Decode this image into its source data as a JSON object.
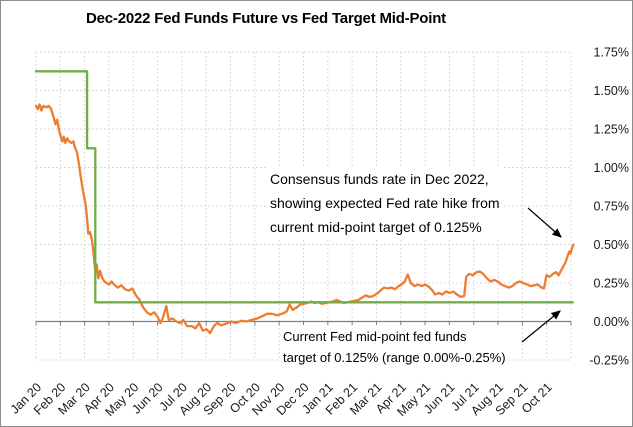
{
  "chart_data": {
    "type": "line",
    "title": "Dec-2022 Fed Funds Future vs Fed Target Mid-Point",
    "x_unit": "months since Jan 2020",
    "x_range": [
      0,
      22
    ],
    "x_tick_labels": [
      "Jan 20",
      "Feb 20",
      "Mar 20",
      "Apr 20",
      "May 20",
      "Jun 20",
      "Jul 20",
      "Aug 20",
      "Sep 20",
      "Oct 20",
      "Nov 20",
      "Dec 20",
      "Jan 21",
      "Feb 21",
      "Mar 21",
      "Apr 21",
      "May 21",
      "Jun 21",
      "Jul 21",
      "Aug 21",
      "Sep 21",
      "Oct 21"
    ],
    "ylim": [
      -0.25,
      1.75
    ],
    "y_tick_values": [
      1.75,
      1.5,
      1.25,
      1.0,
      0.75,
      0.5,
      0.25,
      0.0,
      -0.25
    ],
    "y_tick_labels": [
      "1.75%",
      "1.50%",
      "1.25%",
      "1.00%",
      "0.75%",
      "0.50%",
      "0.25%",
      "0.00%",
      "-0.25%"
    ],
    "grid": true,
    "legend": "none",
    "colors": {
      "future_line": "#ED7D31",
      "target_line": "#70AD47",
      "gridline": "#D9D9D9",
      "zero_axis": "#7F7F7F",
      "text": "#1a1a1a"
    },
    "series": [
      {
        "name": "Dec-2022 Fed Funds Future",
        "color": "#ED7D31",
        "points": [
          [
            0,
            1.4
          ],
          [
            0.08,
            1.38
          ],
          [
            0.15,
            1.41
          ],
          [
            0.22,
            1.37
          ],
          [
            0.3,
            1.4
          ],
          [
            0.42,
            1.39
          ],
          [
            0.52,
            1.4
          ],
          [
            0.62,
            1.38
          ],
          [
            0.72,
            1.33
          ],
          [
            0.8,
            1.28
          ],
          [
            0.87,
            1.31
          ],
          [
            0.95,
            1.24
          ],
          [
            1.02,
            1.2
          ],
          [
            1.08,
            1.17
          ],
          [
            1.14,
            1.2
          ],
          [
            1.2,
            1.16
          ],
          [
            1.28,
            1.19
          ],
          [
            1.36,
            1.17
          ],
          [
            1.46,
            1.16
          ],
          [
            1.54,
            1.17
          ],
          [
            1.6,
            1.13
          ],
          [
            1.68,
            1.1
          ],
          [
            1.76,
            1.03
          ],
          [
            1.84,
            0.94
          ],
          [
            1.92,
            0.86
          ],
          [
            1.99,
            0.8
          ],
          [
            2.05,
            0.75
          ],
          [
            2.11,
            0.65
          ],
          [
            2.15,
            0.57
          ],
          [
            2.22,
            0.58
          ],
          [
            2.3,
            0.53
          ],
          [
            2.36,
            0.45
          ],
          [
            2.41,
            0.37
          ],
          [
            2.45,
            0.32
          ],
          [
            2.5,
            0.37
          ],
          [
            2.56,
            0.28
          ],
          [
            2.63,
            0.33
          ],
          [
            2.71,
            0.29
          ],
          [
            2.81,
            0.26
          ],
          [
            2.91,
            0.25
          ],
          [
            3.01,
            0.24
          ],
          [
            3.11,
            0.26
          ],
          [
            3.21,
            0.24
          ],
          [
            3.36,
            0.22
          ],
          [
            3.51,
            0.235
          ],
          [
            3.66,
            0.21
          ],
          [
            3.81,
            0.2
          ],
          [
            3.96,
            0.215
          ],
          [
            4.11,
            0.17
          ],
          [
            4.26,
            0.14
          ],
          [
            4.41,
            0.09
          ],
          [
            4.56,
            0.06
          ],
          [
            4.71,
            0.045
          ],
          [
            4.86,
            0.06
          ],
          [
            5.01,
            0.03
          ],
          [
            5.11,
            -0.01
          ],
          [
            5.21,
            0.02
          ],
          [
            5.36,
            0.1
          ],
          [
            5.46,
            0.01
          ],
          [
            5.61,
            0.02
          ],
          [
            5.76,
            0
          ],
          [
            5.91,
            -0.01
          ],
          [
            6.06,
            0.01
          ],
          [
            6.21,
            -0.03
          ],
          [
            6.41,
            -0.03
          ],
          [
            6.56,
            -0.045
          ],
          [
            6.71,
            -0.01
          ],
          [
            6.86,
            -0.06
          ],
          [
            7.01,
            -0.05
          ],
          [
            7.16,
            -0.075
          ],
          [
            7.31,
            -0.03
          ],
          [
            7.46,
            -0.01
          ],
          [
            7.61,
            -0.025
          ],
          [
            7.81,
            -0.015
          ],
          [
            8.01,
            0
          ],
          [
            8.21,
            -0.01
          ],
          [
            8.46,
            0.005
          ],
          [
            8.66,
            0
          ],
          [
            8.86,
            0.01
          ],
          [
            9.11,
            0.02
          ],
          [
            9.31,
            0.035
          ],
          [
            9.51,
            0.05
          ],
          [
            9.71,
            0.05
          ],
          [
            9.91,
            0.04
          ],
          [
            10.11,
            0.05
          ],
          [
            10.31,
            0.065
          ],
          [
            10.43,
            0.11
          ],
          [
            10.56,
            0.075
          ],
          [
            10.71,
            0.09
          ],
          [
            10.86,
            0.11
          ],
          [
            11.01,
            0.115
          ],
          [
            11.16,
            0.12
          ],
          [
            11.31,
            0.13
          ],
          [
            11.46,
            0.12
          ],
          [
            11.61,
            0.125
          ],
          [
            11.76,
            0.115
          ],
          [
            11.91,
            0.12
          ],
          [
            12.06,
            0.125
          ],
          [
            12.21,
            0.13
          ],
          [
            12.36,
            0.14
          ],
          [
            12.51,
            0.13
          ],
          [
            12.66,
            0.12
          ],
          [
            12.81,
            0.125
          ],
          [
            12.96,
            0.13
          ],
          [
            13.11,
            0.135
          ],
          [
            13.26,
            0.14
          ],
          [
            13.41,
            0.155
          ],
          [
            13.56,
            0.17
          ],
          [
            13.71,
            0.16
          ],
          [
            13.86,
            0.165
          ],
          [
            14.01,
            0.18
          ],
          [
            14.16,
            0.2
          ],
          [
            14.31,
            0.22
          ],
          [
            14.46,
            0.215
          ],
          [
            14.61,
            0.22
          ],
          [
            14.76,
            0.21
          ],
          [
            14.91,
            0.23
          ],
          [
            15.03,
            0.24
          ],
          [
            15.16,
            0.26
          ],
          [
            15.29,
            0.305
          ],
          [
            15.41,
            0.25
          ],
          [
            15.56,
            0.23
          ],
          [
            15.71,
            0.24
          ],
          [
            15.86,
            0.23
          ],
          [
            16.01,
            0.24
          ],
          [
            16.16,
            0.225
          ],
          [
            16.31,
            0.2
          ],
          [
            16.41,
            0.175
          ],
          [
            16.56,
            0.185
          ],
          [
            16.71,
            0.175
          ],
          [
            16.86,
            0.195
          ],
          [
            17.01,
            0.185
          ],
          [
            17.16,
            0.195
          ],
          [
            17.31,
            0.175
          ],
          [
            17.46,
            0.16
          ],
          [
            17.61,
            0.165
          ],
          [
            17.69,
            0.29
          ],
          [
            17.81,
            0.31
          ],
          [
            17.96,
            0.3
          ],
          [
            18.11,
            0.32
          ],
          [
            18.24,
            0.325
          ],
          [
            18.39,
            0.31
          ],
          [
            18.54,
            0.28
          ],
          [
            18.69,
            0.26
          ],
          [
            18.84,
            0.27
          ],
          [
            18.99,
            0.26
          ],
          [
            19.14,
            0.24
          ],
          [
            19.29,
            0.23
          ],
          [
            19.44,
            0.22
          ],
          [
            19.59,
            0.23
          ],
          [
            19.74,
            0.25
          ],
          [
            19.89,
            0.26
          ],
          [
            20.04,
            0.25
          ],
          [
            20.19,
            0.24
          ],
          [
            20.34,
            0.23
          ],
          [
            20.49,
            0.235
          ],
          [
            20.64,
            0.24
          ],
          [
            20.79,
            0.22
          ],
          [
            20.89,
            0.215
          ],
          [
            20.99,
            0.3
          ],
          [
            21.12,
            0.29
          ],
          [
            21.27,
            0.31
          ],
          [
            21.39,
            0.32
          ],
          [
            21.49,
            0.3
          ],
          [
            21.59,
            0.33
          ],
          [
            21.69,
            0.36
          ],
          [
            21.79,
            0.39
          ],
          [
            21.87,
            0.43
          ],
          [
            21.93,
            0.455
          ],
          [
            21.98,
            0.44
          ],
          [
            22.04,
            0.475
          ],
          [
            22.1,
            0.5
          ]
        ]
      },
      {
        "name": "Fed Target Mid-Point",
        "color": "#70AD47",
        "points": [
          [
            0,
            1.625
          ],
          [
            2.1,
            1.625
          ],
          [
            2.1,
            1.125
          ],
          [
            2.44,
            1.125
          ],
          [
            2.44,
            0.125
          ],
          [
            22.08,
            0.125
          ]
        ]
      }
    ]
  },
  "annotations": {
    "consensus": {
      "lines": [
        "Consensus funds rate in Dec 2022,",
        "showing expected Fed rate hike from",
        "current mid-point target of 0.125%"
      ]
    },
    "current_target": {
      "lines": [
        "Current Fed mid-point fed funds",
        "target of 0.125% (range 0.00%-0.25%)"
      ]
    }
  }
}
